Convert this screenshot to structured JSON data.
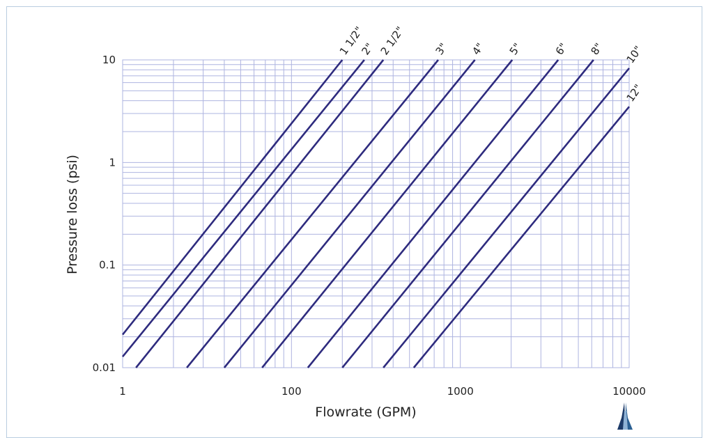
{
  "chart_data": {
    "type": "line",
    "xlabel": "Flowrate (GPM)",
    "ylabel": "Pressure loss (psi)",
    "xscale": "log",
    "yscale": "log",
    "xlim": [
      10,
      10000
    ],
    "ylim": [
      0.01,
      10
    ],
    "xticks": [
      "1",
      "100",
      "1000",
      "10000"
    ],
    "yticks": [
      "0.01",
      "0.1",
      "1",
      "10"
    ],
    "grid": true,
    "line_color": "#2e2b7e",
    "grid_color": "#aeb4e0",
    "series": [
      {
        "name": "1 1/2\"",
        "x": [
          10,
          200
        ],
        "y": [
          0.021,
          10
        ]
      },
      {
        "name": "2\"",
        "x": [
          10,
          270
        ],
        "y": [
          0.0128,
          10
        ]
      },
      {
        "name": "2 1/2\"",
        "x": [
          12,
          350
        ],
        "y": [
          0.01,
          10
        ]
      },
      {
        "name": "3\"",
        "x": [
          24,
          740
        ],
        "y": [
          0.01,
          10
        ]
      },
      {
        "name": "4\"",
        "x": [
          40,
          1220
        ],
        "y": [
          0.01,
          10
        ]
      },
      {
        "name": "5\"",
        "x": [
          67,
          2030
        ],
        "y": [
          0.01,
          10
        ]
      },
      {
        "name": "6\"",
        "x": [
          125,
          3800
        ],
        "y": [
          0.01,
          10
        ]
      },
      {
        "name": "8\"",
        "x": [
          200,
          6150
        ],
        "y": [
          0.01,
          10
        ]
      },
      {
        "name": "10\"",
        "x": [
          350,
          10000
        ],
        "y": [
          0.01,
          8.3
        ]
      },
      {
        "name": "12\"",
        "x": [
          530,
          10000
        ],
        "y": [
          0.01,
          3.5
        ]
      }
    ]
  }
}
